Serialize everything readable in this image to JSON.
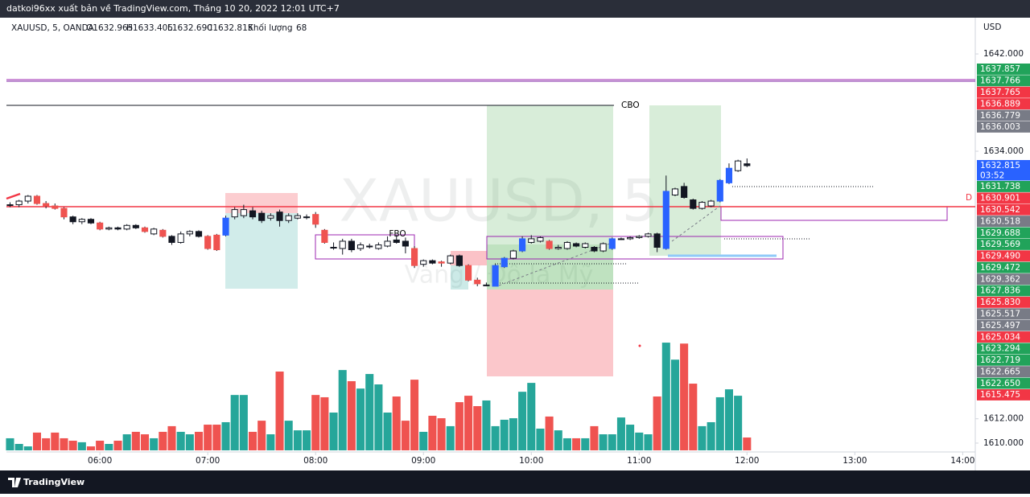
{
  "header": {
    "title": "datkoi96xx xuất bản về TradingView.com, Tháng 10 20, 2022 12:01 UTC+7"
  },
  "footer": {
    "brand": "TradingView"
  },
  "chart_data": {
    "type": "candlestick",
    "symbol": "XAUUSD, 5, OANDA",
    "legend_ohlc": [
      "O1632.965",
      "H1633.405",
      "L1632.690",
      "C1632.815"
    ],
    "volume_label": "Khối lượng",
    "watermark": "XAUUSD, 5",
    "watermark_subtitle": "Vàng / Đô la Mỹ",
    "currency": "USD",
    "annotations": [
      "CBO",
      "FBO",
      "D"
    ],
    "xlim": [
      "05:08",
      "14:07"
    ],
    "xticks": [
      "06:00",
      "07:00",
      "08:00",
      "09:00",
      "10:00",
      "11:00",
      "12:00",
      "13:00",
      "14:00"
    ],
    "ylim": [
      1609.27,
      1644.98
    ],
    "yticks": [
      {
        "value": 1642,
        "label": "1642.000"
      },
      {
        "value": 1634,
        "label": "1634.000"
      },
      {
        "value": 1612,
        "label": "1612.000"
      },
      {
        "value": 1610,
        "label": "1610.000"
      }
    ],
    "vlim": [
      0,
      600
    ],
    "grid": false,
    "palette": {
      "white": "#ffffff",
      "red": "#ef5350",
      "black": "#131722",
      "blue": "#2962ff",
      "volume_up": "#26a69a",
      "volume_down": "#ef5350",
      "outline": "#131722"
    },
    "x": [
      "05:10",
      "05:15",
      "05:20",
      "05:25",
      "05:30",
      "05:35",
      "05:40",
      "05:45",
      "05:50",
      "05:55",
      "06:00",
      "06:05",
      "06:10",
      "06:15",
      "06:20",
      "06:25",
      "06:30",
      "06:35",
      "06:40",
      "06:45",
      "06:50",
      "06:55",
      "07:00",
      "07:05",
      "07:10",
      "07:15",
      "07:20",
      "07:25",
      "07:30",
      "07:35",
      "07:40",
      "07:45",
      "07:50",
      "07:55",
      "08:00",
      "08:05",
      "08:10",
      "08:15",
      "08:20",
      "08:25",
      "08:30",
      "08:35",
      "08:40",
      "08:45",
      "08:50",
      "08:55",
      "09:00",
      "09:05",
      "09:10",
      "09:15",
      "09:20",
      "09:25",
      "09:30",
      "09:35",
      "09:40",
      "09:45",
      "09:50",
      "09:55",
      "10:00",
      "10:05",
      "10:10",
      "10:15",
      "10:20",
      "10:25",
      "10:30",
      "10:35",
      "10:40",
      "10:45",
      "10:50",
      "10:55",
      "11:00",
      "11:05",
      "11:10",
      "11:15",
      "11:20",
      "11:25",
      "11:30",
      "11:35",
      "11:40",
      "11:45",
      "11:50",
      "11:55",
      "12:00"
    ],
    "open": [
      1629.6,
      1629.6,
      1629.9,
      1630.3,
      1629.7,
      1629.5,
      1629.3,
      1628.6,
      1628.2,
      1628.4,
      1628.1,
      1627.6,
      1627.7,
      1627.6,
      1627.9,
      1627.7,
      1627.2,
      1627.5,
      1627.0,
      1626.5,
      1627.2,
      1627.4,
      1627.0,
      1627.1,
      1627.1,
      1628.6,
      1628.7,
      1629.1,
      1628.9,
      1628.5,
      1629.0,
      1628.3,
      1628.5,
      1628.6,
      1628.8,
      1627.5,
      1626.1,
      1626.0,
      1626.6,
      1626.0,
      1626.2,
      1626.0,
      1626.2,
      1626.7,
      1626.6,
      1626.0,
      1624.7,
      1625.0,
      1624.9,
      1624.8,
      1625.4,
      1624.6,
      1623.4,
      1623.0,
      1622.9,
      1624.5,
      1625.2,
      1625.8,
      1626.5,
      1626.6,
      1626.6,
      1626.0,
      1626.0,
      1626.4,
      1626.1,
      1626.1,
      1625.8,
      1626.0,
      1626.8,
      1626.8,
      1626.9,
      1627.0,
      1627.2,
      1626.0,
      1630.4,
      1631.1,
      1630.0,
      1629.3,
      1629.5,
      1629.9,
      1631.4,
      1632.4,
      1632.965
    ],
    "high": [
      1629.8,
      1630.0,
      1630.4,
      1630.4,
      1629.9,
      1629.7,
      1629.4,
      1628.7,
      1628.5,
      1628.5,
      1628.2,
      1627.8,
      1627.8,
      1628.0,
      1628.0,
      1627.8,
      1627.7,
      1627.6,
      1627.1,
      1627.4,
      1627.5,
      1627.5,
      1627.1,
      1627.2,
      1628.7,
      1629.4,
      1629.6,
      1629.4,
      1629.1,
      1628.9,
      1629.2,
      1628.9,
      1628.9,
      1628.8,
      1629.0,
      1627.6,
      1626.5,
      1626.8,
      1626.8,
      1626.5,
      1626.4,
      1626.5,
      1627.0,
      1627.1,
      1626.9,
      1626.2,
      1625.1,
      1625.1,
      1625.0,
      1625.5,
      1625.5,
      1624.7,
      1623.6,
      1623.2,
      1624.7,
      1625.3,
      1625.9,
      1627.0,
      1627.1,
      1627.0,
      1626.7,
      1626.3,
      1626.6,
      1626.5,
      1626.5,
      1626.2,
      1626.5,
      1626.9,
      1626.9,
      1627.0,
      1627.1,
      1627.3,
      1627.3,
      1632.0,
      1631.0,
      1631.4,
      1630.1,
      1629.9,
      1630.0,
      1631.7,
      1633.0,
      1633.3,
      1633.405
    ],
    "low": [
      1629.4,
      1629.4,
      1629.7,
      1629.6,
      1629.3,
      1629.2,
      1628.4,
      1628.0,
      1628.0,
      1628.0,
      1627.5,
      1627.5,
      1627.5,
      1627.5,
      1627.6,
      1627.3,
      1627.1,
      1626.9,
      1626.3,
      1626.4,
      1627.0,
      1626.9,
      1625.9,
      1625.8,
      1627.0,
      1628.4,
      1628.5,
      1628.4,
      1628.1,
      1628.3,
      1627.8,
      1628.1,
      1628.4,
      1628.4,
      1627.7,
      1626.4,
      1625.9,
      1625.5,
      1625.7,
      1625.8,
      1626.0,
      1625.9,
      1626.1,
      1626.4,
      1625.6,
      1624.4,
      1624.5,
      1624.7,
      1624.5,
      1624.7,
      1624.5,
      1623.3,
      1622.9,
      1622.9,
      1622.9,
      1624.4,
      1625.1,
      1625.7,
      1626.4,
      1626.5,
      1625.9,
      1625.9,
      1625.9,
      1626.1,
      1626.0,
      1625.7,
      1625.7,
      1625.9,
      1626.7,
      1626.7,
      1626.8,
      1626.9,
      1625.7,
      1625.9,
      1630.3,
      1630.1,
      1629.2,
      1629.2,
      1629.4,
      1629.8,
      1631.3,
      1632.3,
      1632.69
    ],
    "close": [
      1629.6,
      1629.9,
      1630.3,
      1629.7,
      1629.5,
      1629.3,
      1628.6,
      1628.2,
      1628.4,
      1628.1,
      1627.6,
      1627.7,
      1627.6,
      1627.9,
      1627.7,
      1627.4,
      1627.6,
      1627.0,
      1626.5,
      1627.2,
      1627.4,
      1627.0,
      1626.0,
      1625.9,
      1628.5,
      1629.2,
      1629.2,
      1628.6,
      1628.3,
      1628.7,
      1628.3,
      1628.7,
      1628.7,
      1628.6,
      1628.0,
      1626.5,
      1626.1,
      1626.6,
      1625.9,
      1626.3,
      1626.2,
      1626.3,
      1626.6,
      1626.5,
      1626.2,
      1624.6,
      1625.0,
      1624.8,
      1624.8,
      1625.4,
      1624.6,
      1623.4,
      1623.1,
      1623.0,
      1624.6,
      1625.2,
      1625.8,
      1626.8,
      1626.8,
      1626.9,
      1626.0,
      1626.1,
      1626.5,
      1626.2,
      1626.4,
      1625.8,
      1626.4,
      1626.8,
      1626.8,
      1626.9,
      1627.0,
      1627.2,
      1626.1,
      1630.7,
      1630.9,
      1630.2,
      1629.3,
      1629.8,
      1629.9,
      1631.6,
      1632.6,
      1633.2,
      1632.815
    ],
    "candle_style": [
      "white",
      "white",
      "white",
      "red",
      "red",
      "red",
      "red",
      "black",
      "white",
      "black",
      "red",
      "white",
      "black",
      "white",
      "black",
      "red",
      "white",
      "red",
      "black",
      "white",
      "white",
      "black",
      "red",
      "red",
      "blue",
      "white",
      "white",
      "black",
      "black",
      "white",
      "black",
      "white",
      "white",
      "white",
      "red",
      "red",
      "white",
      "white",
      "black",
      "white",
      "white",
      "white",
      "white",
      "black",
      "black",
      "red",
      "white",
      "black",
      "red",
      "white",
      "black",
      "red",
      "red",
      "white",
      "blue",
      "blue",
      "white",
      "blue",
      "white",
      "white",
      "red",
      "white",
      "white",
      "black",
      "white",
      "black",
      "white",
      "blue",
      "white",
      "white",
      "white",
      "white",
      "black",
      "blue",
      "white",
      "black",
      "black",
      "white",
      "white",
      "blue",
      "blue",
      "white",
      "black"
    ],
    "volume": [
      64,
      34,
      21,
      94,
      64,
      94,
      64,
      51,
      43,
      21,
      51,
      34,
      51,
      85,
      98,
      85,
      64,
      98,
      128,
      98,
      85,
      98,
      136,
      136,
      149,
      293,
      293,
      98,
      157,
      85,
      417,
      157,
      106,
      106,
      293,
      281,
      200,
      425,
      366,
      327,
      404,
      349,
      200,
      285,
      157,
      374,
      98,
      183,
      170,
      128,
      255,
      289,
      234,
      264,
      128,
      162,
      170,
      310,
      357,
      115,
      179,
      106,
      64,
      64,
      64,
      128,
      85,
      85,
      174,
      136,
      94,
      85,
      285,
      570,
      480,
      565,
      353,
      128,
      149,
      281,
      323,
      289,
      68
    ],
    "price_tags": [
      {
        "value": 1637.857,
        "color": "#21a35a"
      },
      {
        "value": 1637.766,
        "color": "#21a35a"
      },
      {
        "value": 1637.765,
        "color": "#f23645"
      },
      {
        "value": 1636.889,
        "color": "#f23645"
      },
      {
        "value": 1636.779,
        "color": "#787b86"
      },
      {
        "value": 1636.003,
        "color": "#787b86"
      },
      {
        "value": 1632.815,
        "color": "#2962ff",
        "countdown": "03:52"
      },
      {
        "value": 1631.738,
        "color": "#21a35a"
      },
      {
        "value": 1630.901,
        "color": "#f23645"
      },
      {
        "value": 1630.542,
        "color": "#f23645"
      },
      {
        "value": 1630.518,
        "color": "#787b86"
      },
      {
        "value": 1629.688,
        "color": "#21a35a"
      },
      {
        "value": 1629.569,
        "color": "#21a35a"
      },
      {
        "value": 1629.49,
        "label": "1629.490",
        "color": "#f23645"
      },
      {
        "value": 1629.472,
        "color": "#21a35a"
      },
      {
        "value": 1629.362,
        "color": "#787b86"
      },
      {
        "value": 1627.836,
        "color": "#21a35a"
      },
      {
        "value": 1625.83,
        "label": "1625.830",
        "color": "#f23645"
      },
      {
        "value": 1625.517,
        "color": "#787b86"
      },
      {
        "value": 1625.497,
        "color": "#787b86"
      },
      {
        "value": 1625.034,
        "color": "#f23645"
      },
      {
        "value": 1623.294,
        "color": "#21a35a"
      },
      {
        "value": 1622.719,
        "color": "#21a35a"
      },
      {
        "value": 1622.665,
        "color": "#787b86"
      },
      {
        "value": 1622.65,
        "label": "1622.650",
        "color": "#21a35a"
      },
      {
        "value": 1615.475,
        "color": "#f23645"
      }
    ]
  }
}
